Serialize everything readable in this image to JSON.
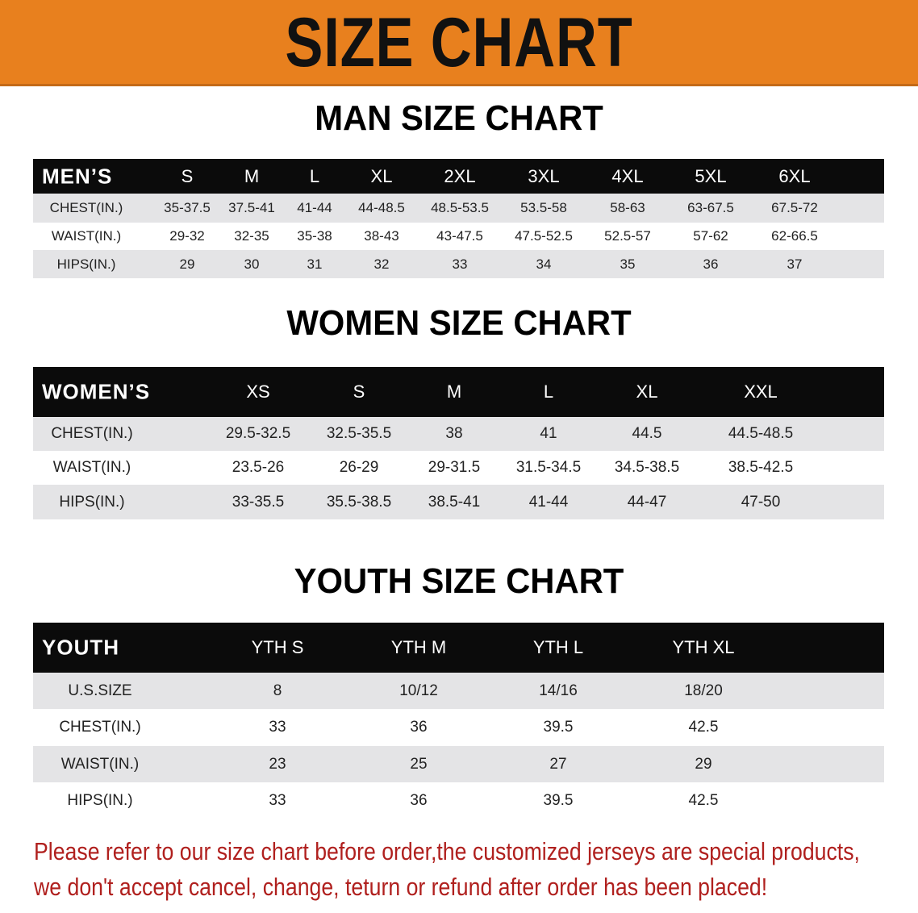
{
  "banner_title": "SIZE CHART",
  "men": {
    "section_title": "MAN SIZE CHART",
    "header_label": "MEN’S",
    "sizes": [
      "S",
      "M",
      "L",
      "XL",
      "2XL",
      "3XL",
      "4XL",
      "5XL",
      "6XL"
    ],
    "rows": [
      {
        "label": "CHEST(IN.)",
        "values": [
          "35-37.5",
          "37.5-41",
          "41-44",
          "44-48.5",
          "48.5-53.5",
          "53.5-58",
          "58-63",
          "63-67.5",
          "67.5-72"
        ]
      },
      {
        "label": "WAIST(IN.)",
        "values": [
          "29-32",
          "32-35",
          "35-38",
          "38-43",
          "43-47.5",
          "47.5-52.5",
          "52.5-57",
          "57-62",
          "62-66.5"
        ]
      },
      {
        "label": "HIPS(IN.)",
        "values": [
          "29",
          "30",
          "31",
          "32",
          "33",
          "34",
          "35",
          "36",
          "37"
        ]
      }
    ]
  },
  "women": {
    "section_title": "WOMEN SIZE CHART",
    "header_label": "WOMEN’S",
    "sizes": [
      "XS",
      "S",
      "M",
      "L",
      "XL",
      "XXL"
    ],
    "rows": [
      {
        "label": "CHEST(IN.)",
        "values": [
          "29.5-32.5",
          "32.5-35.5",
          "38",
          "41",
          "44.5",
          "44.5-48.5"
        ]
      },
      {
        "label": "WAIST(IN.)",
        "values": [
          "23.5-26",
          "26-29",
          "29-31.5",
          "31.5-34.5",
          "34.5-38.5",
          "38.5-42.5"
        ]
      },
      {
        "label": "HIPS(IN.)",
        "values": [
          "33-35.5",
          "35.5-38.5",
          "38.5-41",
          "41-44",
          "44-47",
          "47-50"
        ]
      }
    ]
  },
  "youth": {
    "section_title": "YOUTH SIZE CHART",
    "header_label": "YOUTH",
    "sizes": [
      "YTH S",
      "YTH M",
      "YTH L",
      "YTH XL"
    ],
    "rows": [
      {
        "label": "U.S.SIZE",
        "values": [
          "8",
          "10/12",
          "14/16",
          "18/20"
        ]
      },
      {
        "label": "CHEST(IN.)",
        "values": [
          "33",
          "36",
          "39.5",
          "42.5"
        ]
      },
      {
        "label": "WAIST(IN.)",
        "values": [
          "23",
          "25",
          "27",
          "29"
        ]
      },
      {
        "label": "HIPS(IN.)",
        "values": [
          "33",
          "36",
          "39.5",
          "42.5"
        ]
      }
    ]
  },
  "notice": {
    "line1": "Please refer to our size chart before order,the customized jerseys are special products,",
    "line2": "we don't accept cancel, change, teturn or refund after order has been placed!"
  },
  "colors": {
    "banner": "#e8801e",
    "header_row": "#0b0b0b",
    "stripe": "#e4e4e6",
    "notice": "#b0201e"
  }
}
